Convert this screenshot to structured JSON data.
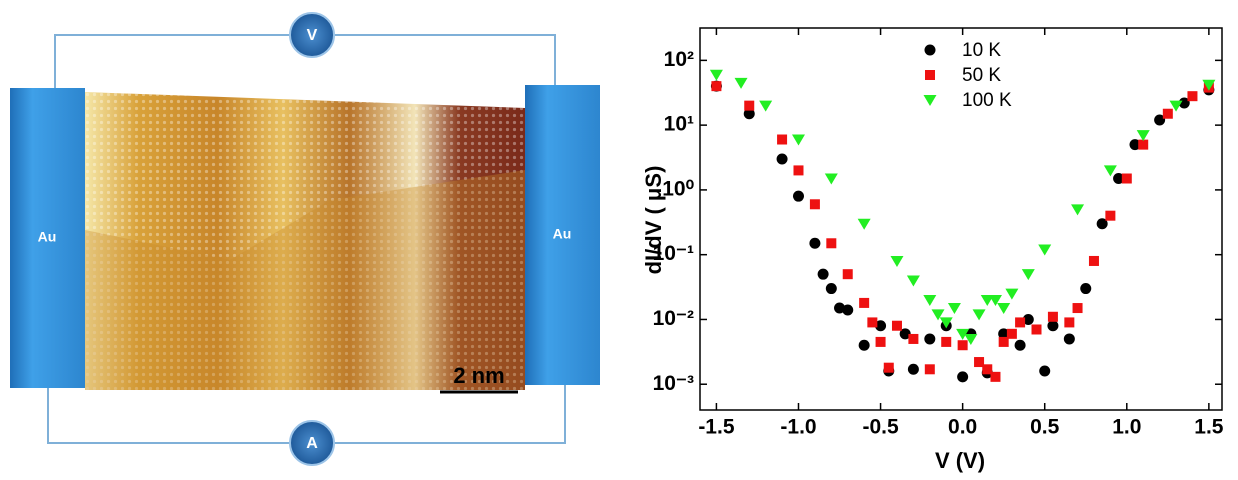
{
  "schematic": {
    "electrode_left": "Au",
    "electrode_right": "Au",
    "voltmeter": "V",
    "ammeter": "A",
    "scale_bar": "2 nm"
  },
  "chart_data": {
    "type": "scatter",
    "x_label": "V (V)",
    "y_label": "dI/dV ( μS)",
    "xlim": [
      -1.6,
      1.58
    ],
    "ylim": [
      0.0004,
      316
    ],
    "log_y": true,
    "xticks": [
      -1.5,
      {
        "value": -1,
        "label": "-1.0"
      },
      -0.5,
      {
        "value": 0,
        "label": "0.0"
      },
      0.5,
      {
        "value": 1,
        "label": "1.0"
      },
      1.5
    ],
    "yticks": [
      {
        "value": 0.001,
        "label": "10⁻³"
      },
      {
        "value": 0.01,
        "label": "10⁻²"
      },
      {
        "value": 0.1,
        "label": "10⁻¹"
      },
      {
        "value": 1,
        "label": "10⁰"
      },
      {
        "value": 10,
        "label": "10¹"
      },
      {
        "value": 100,
        "label": "10²"
      }
    ],
    "legend": "upper-center",
    "series": [
      {
        "name": "10 K",
        "color": "#000000",
        "marker": "circle",
        "x": [
          -1.5,
          -1.3,
          -1.1,
          -1.0,
          -0.9,
          -0.85,
          -0.8,
          -0.75,
          -0.7,
          -0.6,
          -0.5,
          -0.45,
          -0.35,
          -0.3,
          -0.2,
          -0.1,
          0.0,
          0.05,
          0.15,
          0.25,
          0.35,
          0.4,
          0.5,
          0.55,
          0.65,
          0.75,
          0.85,
          0.95,
          1.05,
          1.2,
          1.35,
          1.5
        ],
        "values": [
          40,
          15,
          3,
          0.8,
          0.15,
          0.05,
          0.03,
          0.015,
          0.014,
          0.004,
          0.008,
          0.0016,
          0.006,
          0.0017,
          0.005,
          0.008,
          0.0013,
          0.006,
          0.0015,
          0.006,
          0.004,
          0.01,
          0.0016,
          0.008,
          0.005,
          0.03,
          0.3,
          1.5,
          5,
          12,
          22,
          35
        ]
      },
      {
        "name": "50 K",
        "color": "#ee1111",
        "marker": "square",
        "x": [
          -1.5,
          -1.3,
          -1.1,
          -1.0,
          -0.9,
          -0.8,
          -0.7,
          -0.6,
          -0.55,
          -0.5,
          -0.45,
          -0.4,
          -0.3,
          -0.2,
          -0.1,
          0.0,
          0.1,
          0.15,
          0.2,
          0.25,
          0.3,
          0.35,
          0.45,
          0.55,
          0.65,
          0.7,
          0.8,
          0.9,
          1.0,
          1.1,
          1.25,
          1.4,
          1.5
        ],
        "values": [
          40,
          20,
          6,
          2,
          0.6,
          0.15,
          0.05,
          0.018,
          0.009,
          0.0045,
          0.0018,
          0.008,
          0.005,
          0.0017,
          0.0045,
          0.004,
          0.0022,
          0.0017,
          0.0013,
          0.0045,
          0.006,
          0.009,
          0.007,
          0.011,
          0.009,
          0.015,
          0.08,
          0.4,
          1.5,
          5,
          15,
          28,
          38
        ]
      },
      {
        "name": "100 K",
        "color": "#22ee22",
        "marker": "triangle-down",
        "x": [
          -1.5,
          -1.35,
          -1.2,
          -1.0,
          -0.8,
          -0.6,
          -0.4,
          -0.3,
          -0.2,
          -0.15,
          -0.1,
          -0.05,
          0.0,
          0.05,
          0.1,
          0.15,
          0.2,
          0.25,
          0.3,
          0.4,
          0.5,
          0.7,
          0.9,
          1.1,
          1.3,
          1.5
        ],
        "values": [
          60,
          45,
          20,
          6,
          1.5,
          0.3,
          0.08,
          0.04,
          0.02,
          0.012,
          0.009,
          0.015,
          0.006,
          0.005,
          0.012,
          0.02,
          0.02,
          0.015,
          0.025,
          0.05,
          0.12,
          0.5,
          2,
          7,
          20,
          42
        ]
      }
    ]
  }
}
